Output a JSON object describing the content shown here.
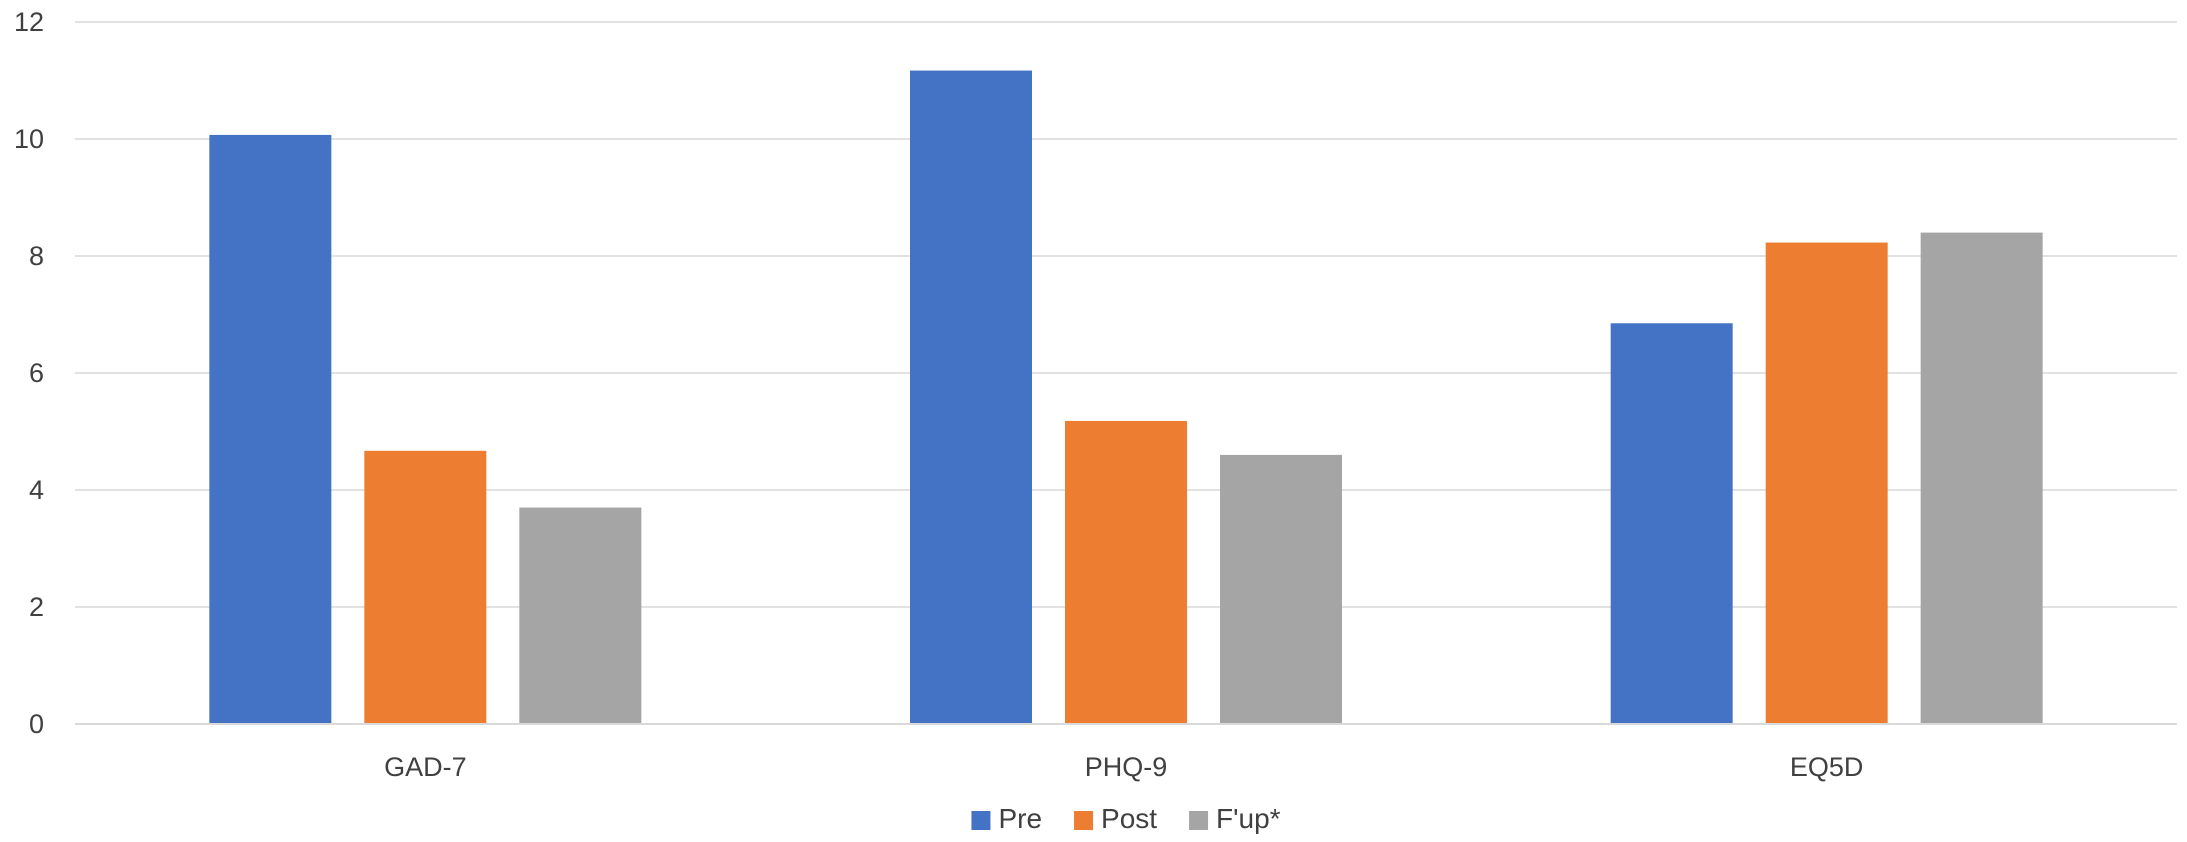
{
  "chart_data": {
    "type": "bar",
    "categories": [
      "GAD-7",
      "PHQ-9",
      "EQ5D"
    ],
    "series": [
      {
        "name": "Pre",
        "color": "#4472c4",
        "values": [
          10.07,
          11.17,
          6.85
        ]
      },
      {
        "name": "Post",
        "color": "#ed7d31",
        "values": [
          4.67,
          5.18,
          8.23
        ]
      },
      {
        "name": "F'up*",
        "color": "#a5a5a5",
        "values": [
          3.7,
          4.6,
          8.4
        ]
      }
    ],
    "ylim": [
      0,
      12
    ],
    "yticks": [
      "0",
      "2",
      "4",
      "6",
      "8",
      "10",
      "12"
    ],
    "title": "",
    "xlabel": "",
    "ylabel": "",
    "grid": true,
    "legend_position": "bottom"
  }
}
